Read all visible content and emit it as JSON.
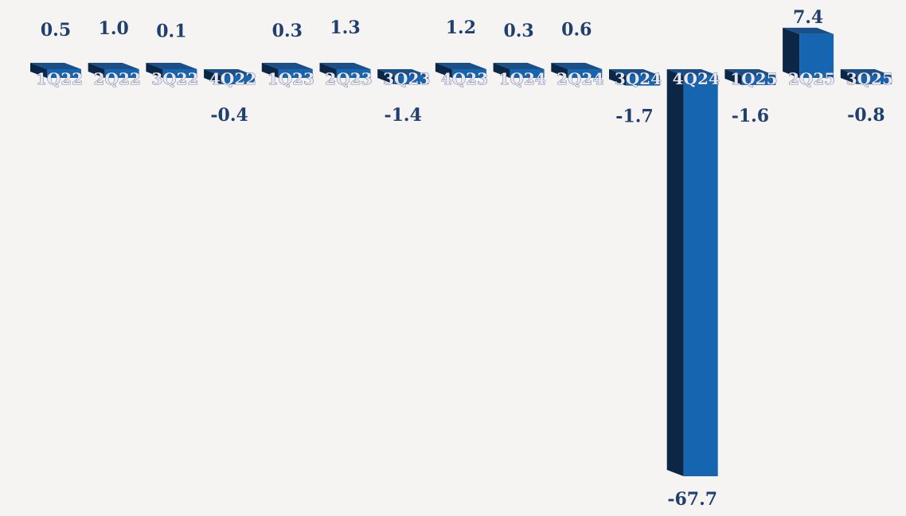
{
  "colors": {
    "background": "#f6f4f3",
    "bar_front": "#1565b1",
    "bar_side": "#0b2745",
    "bar_top": "#1a4f89",
    "value_label": "#1f3f6e",
    "category_label": "#ebe7f2"
  },
  "chart_data": {
    "type": "bar",
    "style": "3d-columns",
    "categories": [
      "1Q22",
      "2Q22",
      "3Q22",
      "4Q22",
      "1Q23",
      "2Q23",
      "3Q23",
      "4Q23",
      "1Q24",
      "2Q24",
      "3Q24",
      "4Q24",
      "1Q25",
      "2Q25",
      "3Q25"
    ],
    "values": [
      0.5,
      1.0,
      0.1,
      -0.4,
      0.3,
      1.3,
      -1.4,
      1.2,
      0.3,
      0.6,
      -1.7,
      -67.7,
      -1.6,
      7.4,
      -0.8
    ],
    "value_labels": [
      "0.5",
      "1.0",
      "0.1",
      "-0.4",
      "0.3",
      "1.3",
      "-1.4",
      "1.2",
      "0.3",
      "0.6",
      "-1.7",
      "-67.7",
      "-1.6",
      "7.4",
      "-0.8"
    ],
    "title": "",
    "xlabel": "",
    "ylabel": "",
    "ylim": [
      -67.7,
      7.4
    ],
    "grid": false,
    "legend": "none",
    "data_labels": true,
    "category_labels_on_bars": true
  }
}
